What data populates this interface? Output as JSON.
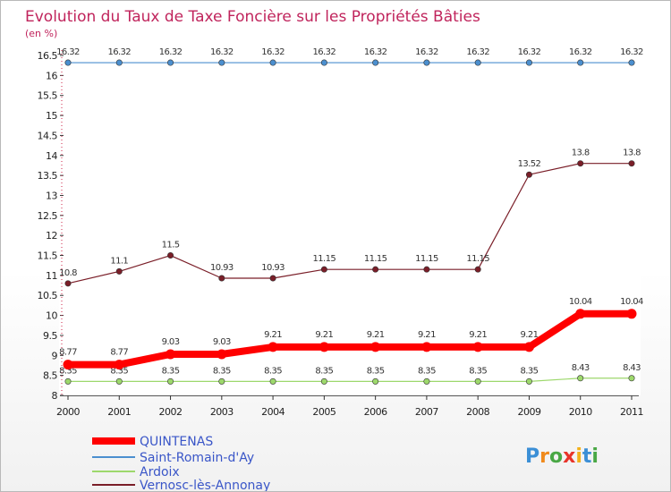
{
  "chart_data": {
    "type": "line",
    "title": "Evolution du Taux de Taxe Foncière sur les Propriétés Bâties",
    "unit_label": "(en %)",
    "x": [
      "2000",
      "2001",
      "2002",
      "2003",
      "2004",
      "2005",
      "2006",
      "2007",
      "2008",
      "2009",
      "2010",
      "2011"
    ],
    "y_ticks": [
      "8",
      "8.5",
      "9",
      "9.5",
      "10",
      "10.5",
      "11",
      "11.5",
      "12",
      "12.5",
      "13",
      "13.5",
      "14",
      "14.5",
      "15",
      "15.5",
      "16",
      "16.5"
    ],
    "ylim": [
      8,
      16.5
    ],
    "legend_position": "bottom-left",
    "series": [
      {
        "name": "QUINTENAS",
        "color": "#ff0000",
        "values": [
          8.77,
          8.77,
          9.03,
          9.03,
          9.21,
          9.21,
          9.21,
          9.21,
          9.21,
          9.21,
          10.04,
          10.04
        ],
        "labels": [
          "8.77",
          "8.77",
          "9.03",
          "9.03",
          "9.21",
          "9.21",
          "9.21",
          "9.21",
          "9.21",
          "9.21",
          "10.04",
          "10.04"
        ]
      },
      {
        "name": "Saint-Romain-d'Ay",
        "color": "#4b8fcf",
        "values": [
          16.32,
          16.32,
          16.32,
          16.32,
          16.32,
          16.32,
          16.32,
          16.32,
          16.32,
          16.32,
          16.32,
          16.32
        ],
        "labels": [
          "16.32",
          "16.32",
          "16.32",
          "16.32",
          "16.32",
          "16.32",
          "16.32",
          "16.32",
          "16.32",
          "16.32",
          "16.32",
          "16.32"
        ]
      },
      {
        "name": "Ardoix",
        "color": "#9dd86c",
        "values": [
          8.35,
          8.35,
          8.35,
          8.35,
          8.35,
          8.35,
          8.35,
          8.35,
          8.35,
          8.35,
          8.43,
          8.43
        ],
        "labels": [
          "8.35",
          "8.35",
          "8.35",
          "8.35",
          "8.35",
          "8.35",
          "8.35",
          "8.35",
          "8.35",
          "8.35",
          "8.43",
          "8.43"
        ]
      },
      {
        "name": "Vernosc-lès-Annonay",
        "color": "#7a1e28",
        "values": [
          10.8,
          11.1,
          11.5,
          10.93,
          10.93,
          11.15,
          11.15,
          11.15,
          11.15,
          13.52,
          13.8,
          13.8
        ],
        "labels": [
          "10.8",
          "11.1",
          "11.5",
          "10.93",
          "10.93",
          "11.15",
          "11.15",
          "11.15",
          "11.15",
          "13.52",
          "13.8",
          "13.8"
        ]
      }
    ]
  },
  "brand": {
    "logo_text": "Proxiti"
  }
}
